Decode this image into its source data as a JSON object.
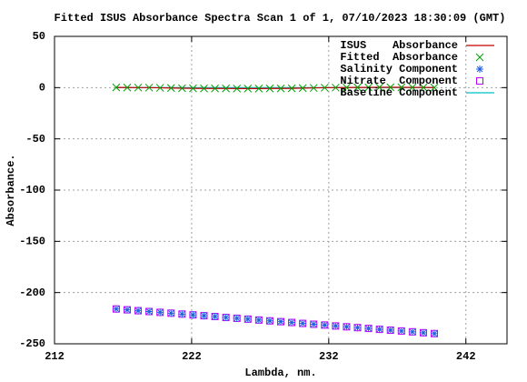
{
  "chart_data": {
    "type": "line",
    "title": "Fitted ISUS Absorbance Spectra Scan 1 of 1, 07/10/2023 18:30:09 (GMT)",
    "x_label": "Lambda, nm.",
    "y_label": "Absorbance.",
    "xlim": [
      212,
      245
    ],
    "ylim": [
      -250,
      50
    ],
    "xticks": [
      212,
      222,
      232,
      242
    ],
    "yticks": [
      -250,
      -200,
      -150,
      -100,
      -50,
      0,
      50
    ],
    "grid": true,
    "legend": "top-right",
    "x": [
      216.5,
      217.3,
      218.1,
      218.9,
      219.7,
      220.5,
      221.3,
      222.1,
      222.9,
      223.7,
      224.5,
      225.3,
      226.1,
      226.9,
      227.7,
      228.5,
      229.3,
      230.1,
      230.9,
      231.7,
      232.5,
      233.3,
      234.1,
      234.9,
      235.7,
      236.5,
      237.3,
      238.1,
      238.9,
      239.7
    ],
    "series": [
      {
        "name": "ISUS    Absorbance",
        "style": "line",
        "color": "#c00000",
        "values": [
          0.2,
          0.1,
          0,
          0,
          -0.2,
          -0.4,
          -0.6,
          -0.7,
          -0.8,
          -0.8,
          -0.8,
          -0.9,
          -0.9,
          -0.9,
          -0.8,
          -0.8,
          -0.7,
          -0.5,
          -0.3,
          -0.1,
          0,
          0.1,
          0.2,
          0.2,
          0.3,
          0.3,
          0.3,
          0.2,
          0.2,
          0.1
        ]
      },
      {
        "name": "Fitted  Absorbance",
        "style": "cross",
        "color": "#00a000",
        "values": [
          0.2,
          0.1,
          0,
          0,
          -0.2,
          -0.4,
          -0.6,
          -0.7,
          -0.8,
          -0.8,
          -0.8,
          -0.9,
          -0.9,
          -0.9,
          -0.8,
          -0.8,
          -0.7,
          -0.5,
          -0.3,
          -0.1,
          0,
          0.1,
          0.2,
          0.2,
          0.3,
          0.3,
          0.3,
          0.2,
          0.2,
          0.1
        ]
      },
      {
        "name": "Salinity Component",
        "style": "star",
        "color": "#2060e0",
        "values": [
          -216,
          -216.8,
          -217.7,
          -218.5,
          -219.3,
          -220.1,
          -221,
          -221.8,
          -222.6,
          -223.4,
          -224.3,
          -225.1,
          -225.9,
          -226.8,
          -227.6,
          -228.4,
          -229.2,
          -230.1,
          -230.9,
          -231.7,
          -232.6,
          -233.4,
          -234.2,
          -235,
          -235.9,
          -236.7,
          -237.5,
          -238.3,
          -239.2,
          -240
        ]
      },
      {
        "name": "Nitrate  Component",
        "style": "square",
        "color": "#c000ff",
        "values": [
          -216,
          -216.8,
          -217.7,
          -218.5,
          -219.3,
          -220.1,
          -221,
          -221.8,
          -222.6,
          -223.4,
          -224.3,
          -225.1,
          -225.9,
          -226.8,
          -227.6,
          -228.4,
          -229.2,
          -230.1,
          -230.9,
          -231.7,
          -232.6,
          -233.4,
          -234.2,
          -235,
          -235.9,
          -236.7,
          -237.5,
          -238.3,
          -239.2,
          -240
        ]
      },
      {
        "name": "Baseline Component",
        "style": "line",
        "color": "#00c0c0",
        "values": [
          0,
          0,
          0,
          0,
          0,
          0,
          0,
          0,
          0,
          0,
          0,
          0,
          0,
          0,
          0,
          0,
          0,
          0,
          0,
          0,
          0,
          0,
          0,
          0,
          0,
          0,
          0,
          0,
          0,
          0
        ]
      }
    ]
  }
}
